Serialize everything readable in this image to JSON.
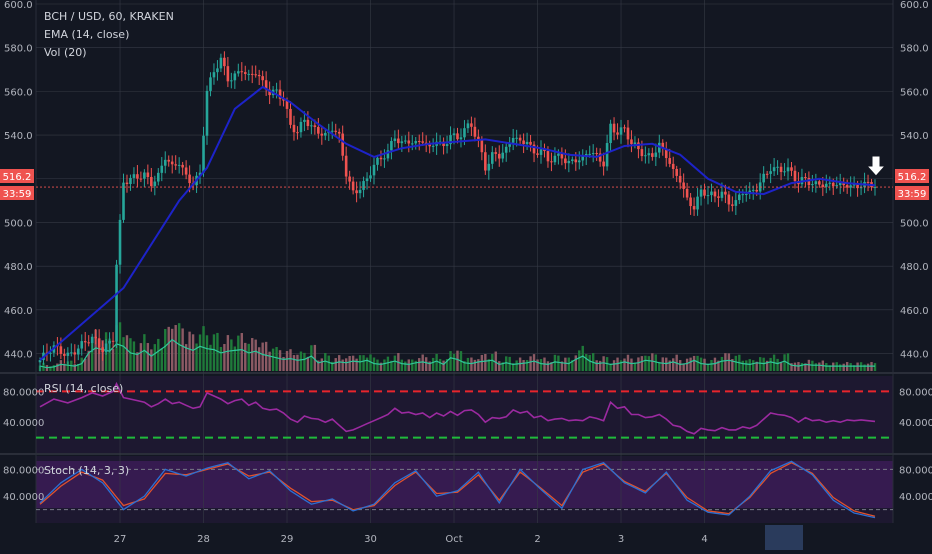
{
  "legend": {
    "symbol": "BCH / USD, 60, KRAKEN",
    "ema": "EMA (14, close)",
    "vol": "Vol (20)",
    "rsi": "RSI (14, close)",
    "stoch": "Stoch (14, 3, 3)"
  },
  "price_badge": {
    "value": "516.2",
    "countdown": "33:59"
  },
  "price_axis": {
    "ticks": [
      "440.0",
      "460.0",
      "480.0",
      "500.0",
      "520.0",
      "540.0",
      "560.0",
      "580.0",
      "600.0"
    ]
  },
  "rsi_axis": {
    "ticks": [
      "40.0000",
      "80.0000"
    ]
  },
  "stoch_axis": {
    "ticks": [
      "40.0000",
      "80.0000"
    ]
  },
  "time_axis": {
    "labels": [
      "27",
      "28",
      "29",
      "30",
      "Oct",
      "2",
      "3",
      "4"
    ]
  },
  "colors": {
    "background": "#131722",
    "grid": "#363a45",
    "up": "#26a69a",
    "down": "#ef5350",
    "ema": "#1d23c9",
    "rsi": "#9b2aa0",
    "stoch_k": "#2b6fd3",
    "stoch_d": "#e0522d",
    "vol_ma": "#2ec79a",
    "overbought": "#e8252c",
    "oversold": "#1fba3b"
  },
  "chart_data": {
    "type": "candlestick",
    "title": "BCH / USD, 60, KRAKEN",
    "ylim": [
      432,
      600
    ],
    "last_price": 516.2,
    "series": [
      {
        "name": "BCH / USD",
        "kind": "close",
        "x": [
          0,
          4,
          8,
          12,
          15,
          18,
          21,
          22,
          24,
          28,
          30,
          32,
          34,
          36,
          38,
          40,
          42,
          44,
          46,
          48,
          50,
          52,
          54,
          56,
          58,
          60,
          62,
          64,
          66,
          68,
          70,
          72,
          74,
          76,
          78,
          80,
          82,
          84,
          86,
          88,
          90,
          92,
          94,
          96,
          98,
          100,
          102,
          104,
          106,
          108,
          110,
          112,
          114,
          116,
          118,
          120,
          122,
          124,
          126,
          128,
          130,
          132,
          134,
          136,
          138,
          140,
          142,
          144,
          146,
          148,
          150,
          152,
          154,
          156,
          158,
          160,
          162,
          164,
          166,
          168,
          170,
          172,
          174,
          176,
          178,
          180,
          182,
          184,
          186,
          188,
          190,
          192,
          194,
          196,
          198,
          200,
          202,
          204,
          206,
          208,
          210,
          212,
          214,
          216,
          218,
          220,
          222,
          224,
          226,
          228,
          230,
          232,
          234,
          236,
          238,
          240
        ],
        "values": [
          437,
          442,
          440,
          444,
          446,
          442,
          448,
          482,
          518,
          520,
          522,
          519,
          522,
          530,
          524,
          527,
          521,
          519,
          523,
          560,
          568,
          574,
          566,
          568,
          571,
          566,
          568,
          563,
          560,
          561,
          557,
          544,
          540,
          547,
          544,
          543,
          540,
          543,
          538,
          522,
          514,
          517,
          520,
          526,
          528,
          532,
          540,
          537,
          538,
          535,
          537,
          533,
          539,
          535,
          541,
          537,
          542,
          544,
          538,
          526,
          531,
          530,
          532,
          540,
          537,
          539,
          531,
          533,
          527,
          530,
          531,
          528,
          529,
          528,
          532,
          530,
          528,
          545,
          541,
          542,
          535,
          534,
          531,
          532,
          535,
          530,
          522,
          520,
          511,
          508,
          514,
          512,
          511,
          514,
          510,
          510,
          514,
          512,
          515,
          521,
          526,
          525,
          524,
          522,
          517,
          521,
          518,
          519,
          516,
          517,
          516,
          518,
          517,
          518,
          517,
          516.2
        ]
      },
      {
        "name": "EMA (14, close)",
        "x": [
          0,
          24,
          40,
          48,
          56,
          64,
          72,
          80,
          88,
          96,
          104,
          112,
          120,
          128,
          136,
          144,
          152,
          160,
          168,
          176,
          184,
          192,
          200,
          208,
          216,
          224,
          232,
          240
        ],
        "values": [
          437,
          470,
          510,
          525,
          552,
          562,
          555,
          545,
          536,
          530,
          534,
          536,
          537,
          538,
          536,
          534,
          531,
          530,
          535,
          536,
          531,
          520,
          514,
          513,
          518,
          520,
          518,
          517
        ]
      },
      {
        "name": "Vol (20)",
        "type": "bar",
        "values": [
          6,
          4,
          5,
          8,
          7,
          6,
          9,
          22,
          28,
          26,
          24,
          33,
          30,
          22,
          20,
          25,
          18,
          24,
          30,
          38,
          32,
          28,
          25,
          30,
          27,
          26,
          22,
          24,
          25,
          26,
          22,
          24,
          20,
          18,
          16,
          14,
          15,
          13,
          14,
          18,
          10,
          12,
          9,
          11,
          10,
          12,
          11,
          13,
          9,
          8,
          10,
          12,
          9,
          8,
          10,
          11,
          9,
          12,
          8,
          16,
          14,
          10,
          9,
          11,
          12,
          13,
          8,
          10,
          8,
          9,
          10,
          12,
          9,
          8,
          11,
          10,
          9,
          14,
          18,
          12,
          9,
          10,
          8,
          9,
          11,
          9,
          10,
          13,
          12,
          10,
          9,
          11,
          8,
          9,
          13,
          9,
          8,
          9,
          12,
          13,
          11,
          9,
          8,
          10,
          9,
          11,
          9,
          12,
          7,
          6,
          8,
          7,
          7,
          6,
          6,
          6
        ]
      },
      {
        "name": "RSI (14, close)",
        "x": [
          0,
          4,
          8,
          12,
          15,
          18,
          21,
          22,
          24,
          28,
          30,
          32,
          34,
          36,
          38,
          40,
          42,
          44,
          46,
          48,
          50,
          52,
          54,
          56,
          58,
          60,
          62,
          64,
          66,
          68,
          70,
          72,
          74,
          76,
          78,
          80,
          82,
          84,
          86,
          88,
          90,
          92,
          94,
          96,
          98,
          100,
          102,
          104,
          106,
          108,
          110,
          112,
          114,
          116,
          118,
          120,
          122,
          124,
          126,
          128,
          130,
          132,
          134,
          136,
          138,
          140,
          142,
          144,
          146,
          148,
          150,
          152,
          154,
          156,
          158,
          160,
          162,
          164,
          166,
          168,
          170,
          172,
          174,
          176,
          178,
          180,
          182,
          184,
          186,
          188,
          190,
          192,
          194,
          196,
          198,
          200,
          202,
          204,
          206,
          208,
          210,
          212,
          214,
          216,
          218,
          220,
          222,
          224,
          226,
          228,
          230,
          232,
          234,
          236,
          238,
          240
        ],
        "values": [
          60,
          70,
          65,
          72,
          78,
          74,
          80,
          90,
          72,
          68,
          66,
          60,
          64,
          70,
          64,
          66,
          62,
          58,
          60,
          78,
          74,
          70,
          64,
          68,
          70,
          62,
          66,
          58,
          56,
          57,
          52,
          44,
          40,
          48,
          45,
          44,
          40,
          44,
          36,
          28,
          30,
          34,
          38,
          42,
          46,
          50,
          58,
          52,
          53,
          50,
          52,
          46,
          52,
          48,
          54,
          49,
          55,
          56,
          50,
          40,
          46,
          45,
          47,
          56,
          52,
          54,
          46,
          48,
          42,
          44,
          45,
          42,
          43,
          42,
          47,
          45,
          42,
          66,
          58,
          60,
          50,
          50,
          46,
          47,
          50,
          44,
          36,
          34,
          28,
          25,
          32,
          30,
          29,
          33,
          30,
          30,
          34,
          32,
          36,
          44,
          52,
          50,
          49,
          46,
          40,
          46,
          42,
          43,
          40,
          42,
          40,
          43,
          42,
          43,
          42,
          41
        ]
      },
      {
        "name": "Stoch (14, 3, 3) %K",
        "x": [
          0,
          6,
          12,
          18,
          24,
          30,
          36,
          42,
          48,
          54,
          60,
          66,
          72,
          78,
          84,
          90,
          96,
          102,
          108,
          114,
          120,
          126,
          132,
          138,
          144,
          150,
          156,
          162,
          168,
          174,
          180,
          186,
          192,
          198,
          204,
          210,
          216,
          222,
          228,
          234,
          240
        ],
        "values": [
          30,
          60,
          80,
          60,
          20,
          40,
          80,
          70,
          82,
          90,
          66,
          78,
          48,
          28,
          36,
          18,
          28,
          60,
          78,
          40,
          48,
          76,
          30,
          80,
          50,
          22,
          80,
          90,
          60,
          45,
          76,
          34,
          16,
          12,
          40,
          78,
          92,
          72,
          34,
          15,
          8
        ]
      },
      {
        "name": "Stoch (14, 3, 3) %D",
        "x": [
          0,
          6,
          12,
          18,
          24,
          30,
          36,
          42,
          48,
          54,
          60,
          66,
          72,
          78,
          84,
          90,
          96,
          102,
          108,
          114,
          120,
          126,
          132,
          138,
          144,
          150,
          156,
          162,
          168,
          174,
          180,
          186,
          192,
          198,
          204,
          210,
          216,
          222,
          228,
          234,
          240
        ],
        "values": [
          28,
          55,
          76,
          64,
          26,
          36,
          74,
          72,
          80,
          88,
          70,
          76,
          52,
          32,
          34,
          20,
          26,
          56,
          76,
          44,
          46,
          72,
          34,
          76,
          52,
          26,
          76,
          88,
          62,
          47,
          74,
          38,
          18,
          14,
          38,
          74,
          90,
          74,
          38,
          18,
          10
        ]
      }
    ],
    "panes": {
      "rsi": {
        "ylim": [
          0,
          100
        ],
        "overbought": 80,
        "oversold": 20
      },
      "stoch": {
        "ylim": [
          0,
          100
        ],
        "upper": 80,
        "lower": 20
      }
    },
    "x_tick_labels": [
      "27",
      "28",
      "29",
      "30",
      "Oct",
      "2",
      "3",
      "4"
    ],
    "x_tick_index": [
      23,
      47,
      71,
      95,
      119,
      143,
      167,
      191
    ],
    "y_tick_labels": [
      "440.0",
      "460.0",
      "480.0",
      "500.0",
      "520.0",
      "540.0",
      "560.0",
      "580.0",
      "600.0"
    ],
    "grid": true,
    "legend": "top-left"
  }
}
